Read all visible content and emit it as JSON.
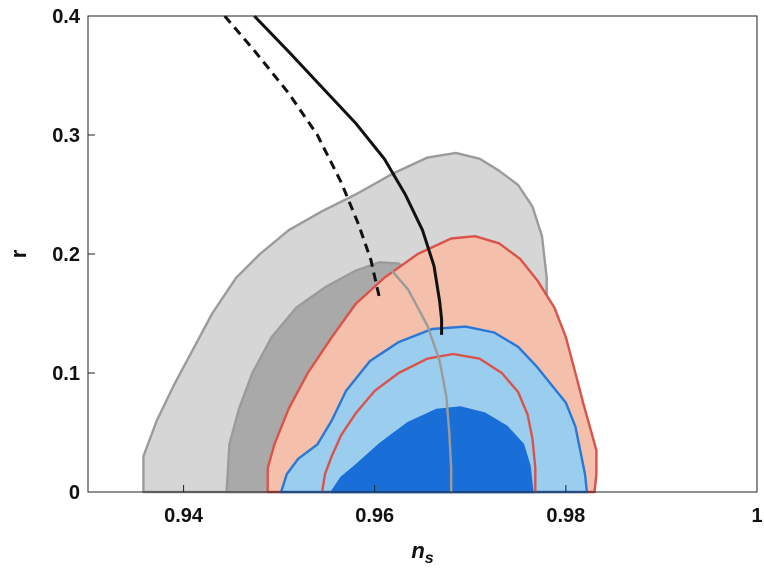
{
  "chart_data": {
    "type": "area",
    "title": "",
    "xlabel": "n",
    "xlabel_subscript": "s",
    "ylabel": "r",
    "xlim": [
      0.93,
      1.0
    ],
    "ylim": [
      0,
      0.4
    ],
    "xticks": [
      0.94,
      0.96,
      0.98,
      1
    ],
    "xtick_labels": [
      "0.94",
      "0.96",
      "0.98",
      "1"
    ],
    "yticks": [
      0,
      0.1,
      0.2,
      0.3,
      0.4
    ],
    "ytick_labels": [
      "0",
      "0.1",
      "0.2",
      "0.3",
      "0.4"
    ],
    "grid": false,
    "series": [
      {
        "kind": "contour-68-outer",
        "fill": "#d6d6d6",
        "stroke": "#9b9b9b",
        "points": [
          [
            0.9358,
            0
          ],
          [
            0.9358,
            0.03
          ],
          [
            0.9372,
            0.06
          ],
          [
            0.939,
            0.09
          ],
          [
            0.941,
            0.12
          ],
          [
            0.943,
            0.15
          ],
          [
            0.9455,
            0.18
          ],
          [
            0.948,
            0.2
          ],
          [
            0.951,
            0.22
          ],
          [
            0.9545,
            0.236
          ],
          [
            0.958,
            0.25
          ],
          [
            0.962,
            0.268
          ],
          [
            0.9655,
            0.281
          ],
          [
            0.9685,
            0.285
          ],
          [
            0.971,
            0.28
          ],
          [
            0.973,
            0.27
          ],
          [
            0.975,
            0.258
          ],
          [
            0.9765,
            0.24
          ],
          [
            0.9775,
            0.215
          ],
          [
            0.978,
            0.18
          ],
          [
            0.978,
            0.14
          ],
          [
            0.9775,
            0.11
          ],
          [
            0.9773,
            0.08
          ],
          [
            0.9772,
            0.05
          ],
          [
            0.9772,
            0.02
          ],
          [
            0.9772,
            0
          ]
        ]
      },
      {
        "kind": "contour-68-inner",
        "fill": "#a9a9a9",
        "stroke": "#9b9b9b",
        "points": [
          [
            0.9445,
            0
          ],
          [
            0.9448,
            0.04
          ],
          [
            0.9458,
            0.07
          ],
          [
            0.9472,
            0.1
          ],
          [
            0.9492,
            0.13
          ],
          [
            0.9518,
            0.155
          ],
          [
            0.9548,
            0.172
          ],
          [
            0.958,
            0.186
          ],
          [
            0.9605,
            0.193
          ],
          [
            0.9625,
            0.192
          ],
          [
            0.964,
            0.184
          ],
          [
            0.9655,
            0.17
          ],
          [
            0.9668,
            0.15
          ],
          [
            0.9676,
            0.12
          ],
          [
            0.968,
            0.09
          ],
          [
            0.968,
            0.06
          ],
          [
            0.968,
            0.03
          ],
          [
            0.968,
            0
          ]
        ]
      },
      {
        "kind": "contour-red-outer",
        "fill": "#f4c0ab",
        "stroke": "#d9534a",
        "points": [
          [
            0.9488,
            0
          ],
          [
            0.9488,
            0.02
          ],
          [
            0.9495,
            0.04
          ],
          [
            0.951,
            0.07
          ],
          [
            0.953,
            0.1
          ],
          [
            0.9555,
            0.13
          ],
          [
            0.958,
            0.158
          ],
          [
            0.961,
            0.18
          ],
          [
            0.9645,
            0.2
          ],
          [
            0.968,
            0.213
          ],
          [
            0.9705,
            0.215
          ],
          [
            0.973,
            0.209
          ],
          [
            0.9752,
            0.196
          ],
          [
            0.977,
            0.178
          ],
          [
            0.9788,
            0.155
          ],
          [
            0.98,
            0.13
          ],
          [
            0.981,
            0.1
          ],
          [
            0.9818,
            0.075
          ],
          [
            0.9825,
            0.055
          ],
          [
            0.9832,
            0.035
          ],
          [
            0.9832,
            0.015
          ],
          [
            0.983,
            0
          ]
        ]
      },
      {
        "kind": "contour-blue-outer",
        "fill": "#9bcdee",
        "stroke": "#2a78d6",
        "points": [
          [
            0.9502,
            0
          ],
          [
            0.9508,
            0.015
          ],
          [
            0.952,
            0.028
          ],
          [
            0.954,
            0.04
          ],
          [
            0.9555,
            0.06
          ],
          [
            0.957,
            0.085
          ],
          [
            0.9595,
            0.11
          ],
          [
            0.9625,
            0.126
          ],
          [
            0.966,
            0.137
          ],
          [
            0.9695,
            0.139
          ],
          [
            0.9725,
            0.134
          ],
          [
            0.975,
            0.122
          ],
          [
            0.977,
            0.105
          ],
          [
            0.9785,
            0.09
          ],
          [
            0.98,
            0.075
          ],
          [
            0.981,
            0.055
          ],
          [
            0.9815,
            0.035
          ],
          [
            0.982,
            0.015
          ],
          [
            0.9822,
            0
          ]
        ]
      },
      {
        "kind": "contour-red-inner",
        "fill": "none",
        "stroke": "#d9534a",
        "points": [
          [
            0.9545,
            0
          ],
          [
            0.9548,
            0.015
          ],
          [
            0.9555,
            0.03
          ],
          [
            0.9565,
            0.048
          ],
          [
            0.958,
            0.066
          ],
          [
            0.96,
            0.085
          ],
          [
            0.9625,
            0.1
          ],
          [
            0.9655,
            0.112
          ],
          [
            0.9682,
            0.116
          ],
          [
            0.971,
            0.112
          ],
          [
            0.9733,
            0.1
          ],
          [
            0.975,
            0.084
          ],
          [
            0.976,
            0.065
          ],
          [
            0.9765,
            0.045
          ],
          [
            0.9768,
            0.02
          ],
          [
            0.9768,
            0
          ]
        ]
      },
      {
        "kind": "contour-blue-inner",
        "fill": "#1a6ed8",
        "stroke": "#1a6ed8",
        "points": [
          [
            0.9555,
            0
          ],
          [
            0.9565,
            0.012
          ],
          [
            0.958,
            0.022
          ],
          [
            0.9605,
            0.04
          ],
          [
            0.9635,
            0.058
          ],
          [
            0.9665,
            0.069
          ],
          [
            0.969,
            0.071
          ],
          [
            0.9715,
            0.066
          ],
          [
            0.9738,
            0.055
          ],
          [
            0.9755,
            0.04
          ],
          [
            0.9762,
            0.022
          ],
          [
            0.9765,
            0
          ]
        ]
      },
      {
        "kind": "contour-grey-edge",
        "fill": "none",
        "stroke": "#9b9b9b",
        "points": [
          [
            0.9618,
            0.186
          ],
          [
            0.9635,
            0.17
          ],
          [
            0.9655,
            0.14
          ],
          [
            0.9668,
            0.11
          ],
          [
            0.9675,
            0.08
          ],
          [
            0.9678,
            0.05
          ],
          [
            0.968,
            0.02
          ],
          [
            0.968,
            0
          ]
        ]
      },
      {
        "kind": "model-line-dashed",
        "stroke": "#111111",
        "points": [
          [
            0.9443,
            0.4
          ],
          [
            0.9475,
            0.37
          ],
          [
            0.951,
            0.335
          ],
          [
            0.954,
            0.3
          ],
          [
            0.9565,
            0.26
          ],
          [
            0.9583,
            0.225
          ],
          [
            0.9596,
            0.195
          ],
          [
            0.9603,
            0.17
          ],
          [
            0.9606,
            0.16
          ]
        ]
      },
      {
        "kind": "model-line-solid",
        "stroke": "#111111",
        "points": [
          [
            0.9474,
            0.4
          ],
          [
            0.951,
            0.37
          ],
          [
            0.9545,
            0.34
          ],
          [
            0.958,
            0.31
          ],
          [
            0.961,
            0.28
          ],
          [
            0.9632,
            0.25
          ],
          [
            0.965,
            0.22
          ],
          [
            0.9662,
            0.19
          ],
          [
            0.9668,
            0.16
          ],
          [
            0.967,
            0.145
          ],
          [
            0.967,
            0.132
          ]
        ]
      }
    ]
  }
}
